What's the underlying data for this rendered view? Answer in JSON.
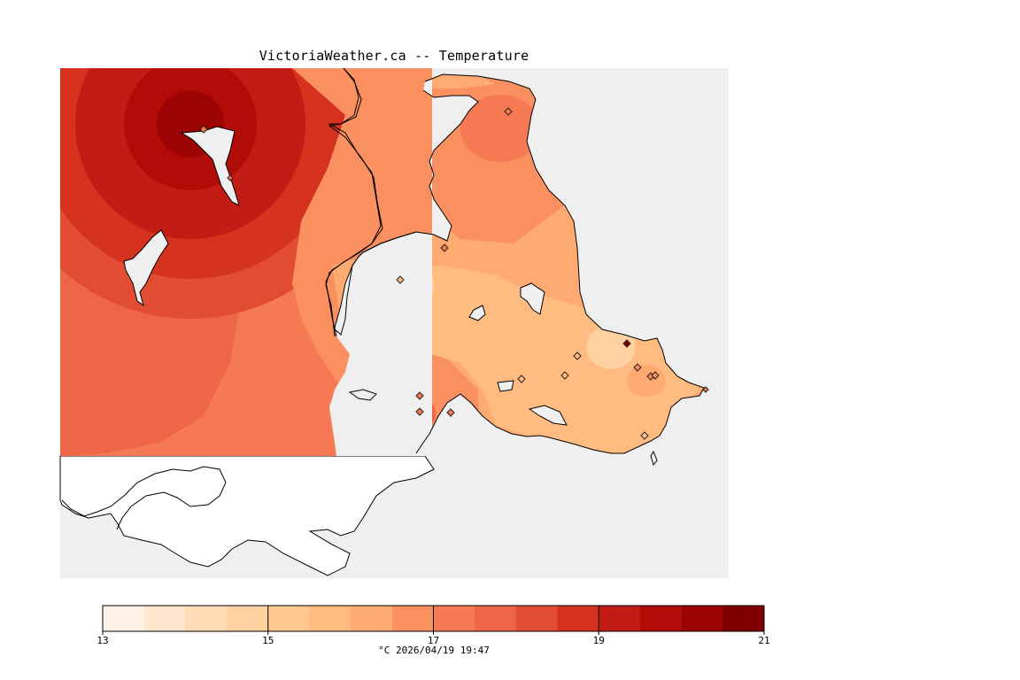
{
  "title": "VictoriaWeather.ca -- Temperature",
  "legend": {
    "ticks": [
      "13",
      "15",
      "17",
      "19",
      "21"
    ],
    "caption": "°C  2026/04/19 19:47",
    "colors": [
      "#fff3e8",
      "#ffe6cc",
      "#ffdcb6",
      "#ffd1a1",
      "#ffc88e",
      "#ffbb80",
      "#ffaa70",
      "#fa9060",
      "#f57a53",
      "#ee6647",
      "#e24c33",
      "#d5321f",
      "#c31c14",
      "#b20c08",
      "#9c0303",
      "#7e0000"
    ]
  },
  "map_colors": {
    "background": "#efefef",
    "land_nodata": "#ffffff"
  },
  "stations_count_note": "",
  "stations": [
    {
      "name": ""
    }
  ]
}
